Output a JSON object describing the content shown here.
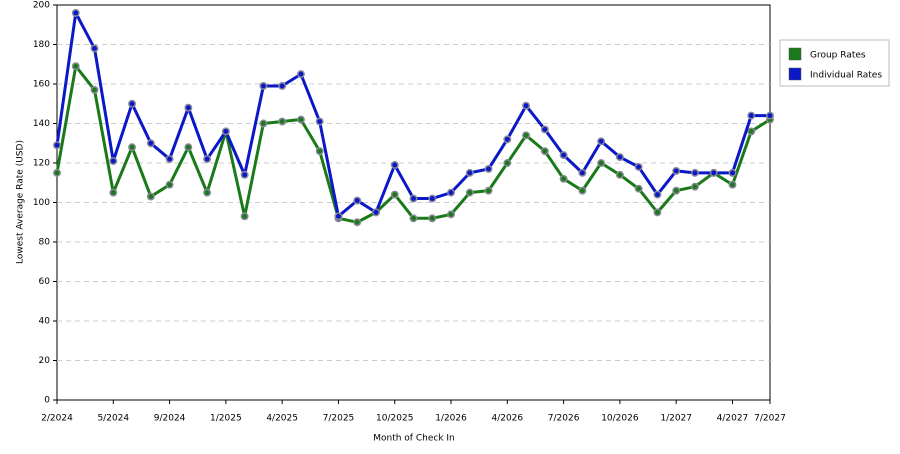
{
  "chart_data": {
    "type": "line",
    "y_label": "Lowest Average Rate (USD)",
    "x_label": "Month of Check In",
    "categories": [
      "2/2024",
      null,
      null,
      "5/2024",
      null,
      null,
      "9/2024",
      null,
      null,
      "1/2025",
      null,
      null,
      "4/2025",
      null,
      null,
      "7/2025",
      null,
      null,
      "10/2025",
      null,
      null,
      "1/2026",
      null,
      null,
      "4/2026",
      null,
      null,
      "7/2026",
      null,
      null,
      "10/2026",
      null,
      null,
      "1/2027",
      null,
      null,
      "4/2027",
      null,
      "7/2027"
    ],
    "series": [
      {
        "name": "Group Rates",
        "color": "#1a7a1a",
        "values": [
          115,
          169,
          157,
          105,
          128,
          103,
          109,
          128,
          105,
          136,
          93,
          140,
          141,
          142,
          126,
          92,
          90,
          95,
          104,
          92,
          92,
          94,
          105,
          106,
          120,
          134,
          126,
          112,
          106,
          120,
          114,
          107,
          95,
          106,
          108,
          115,
          109,
          136,
          142
        ]
      },
      {
        "name": "Individual Rates",
        "color": "#0a18c8",
        "values": [
          129,
          196,
          178,
          121,
          150,
          130,
          122,
          148,
          122,
          136,
          114,
          159,
          159,
          165,
          141,
          93,
          101,
          95,
          119,
          102,
          102,
          105,
          115,
          117,
          132,
          149,
          137,
          124,
          115,
          131,
          123,
          118,
          104,
          116,
          115,
          115,
          115,
          144,
          144
        ]
      }
    ],
    "ylim": [
      0,
      200
    ],
    "yticks": [
      0,
      20,
      40,
      60,
      80,
      100,
      120,
      140,
      160,
      180,
      200
    ],
    "grid": true,
    "legend": "right"
  }
}
